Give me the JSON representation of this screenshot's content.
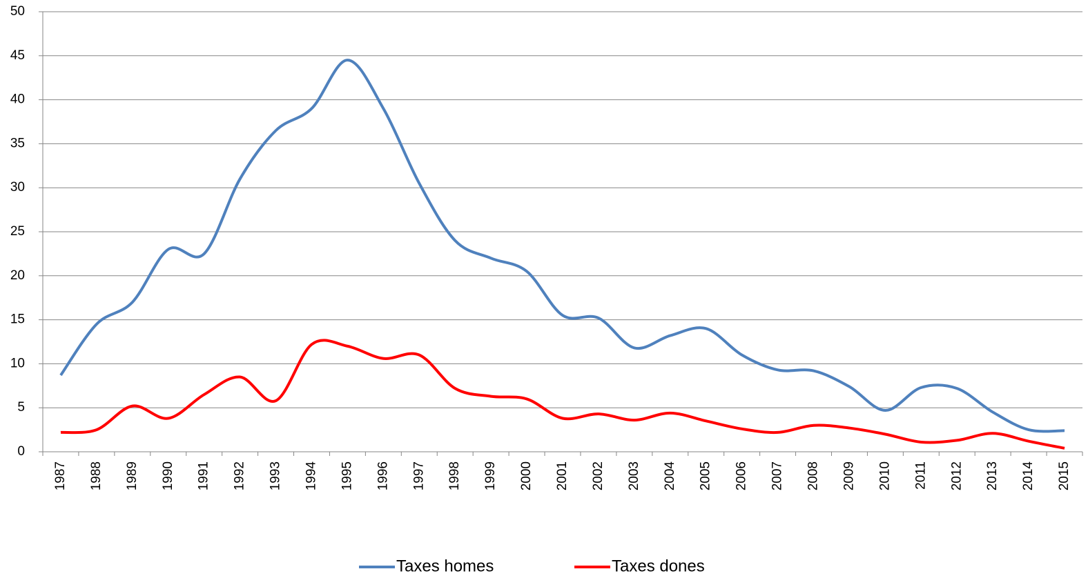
{
  "chart_data": {
    "type": "line",
    "categories": [
      "1987",
      "1988",
      "1989",
      "1990",
      "1991",
      "1992",
      "1993",
      "1994",
      "1995",
      "1996",
      "1997",
      "1998",
      "1999",
      "2000",
      "2001",
      "2002",
      "2003",
      "2004",
      "2005",
      "2006",
      "2007",
      "2008",
      "2009",
      "2010",
      "2011",
      "2012",
      "2013",
      "2014",
      "2015"
    ],
    "series": [
      {
        "name": "Taxes homes",
        "color": "#4f81bd",
        "values": [
          8.7,
          14.5,
          17,
          23,
          22.5,
          31,
          36.5,
          39,
          44.5,
          39,
          30.5,
          24,
          22,
          20.5,
          15.5,
          15.2,
          11.8,
          13.2,
          14,
          11,
          9.3,
          9.2,
          7.4,
          4.7,
          7.3,
          7.2,
          4.5,
          2.5,
          2.4
        ]
      },
      {
        "name": "Taxes dones",
        "color": "#ff0000",
        "values": [
          2.2,
          2.5,
          5.2,
          3.8,
          6.5,
          8.5,
          5.8,
          12.2,
          12,
          10.6,
          11,
          7.2,
          6.3,
          6,
          3.8,
          4.3,
          3.6,
          4.4,
          3.5,
          2.6,
          2.2,
          3,
          2.7,
          2,
          1.1,
          1.3,
          2.1,
          1.2,
          0.4
        ]
      }
    ],
    "ylim": [
      0,
      50
    ],
    "yticks": [
      0,
      5,
      10,
      15,
      20,
      25,
      30,
      35,
      40,
      45,
      50
    ],
    "grid": true,
    "legend": "bottom"
  }
}
